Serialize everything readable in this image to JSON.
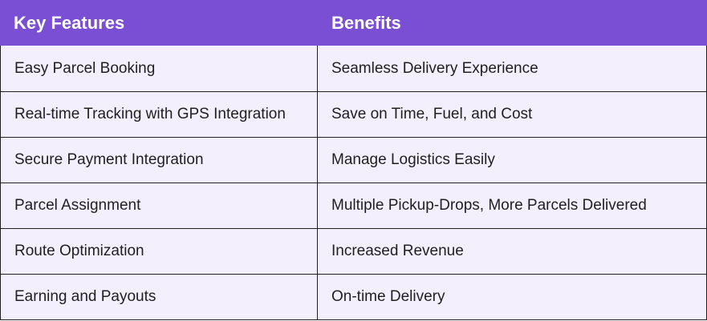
{
  "table": {
    "headers": [
      "Key Features",
      "Benefits"
    ],
    "rows": [
      [
        "Easy Parcel Booking",
        "Seamless Delivery Experience"
      ],
      [
        "Real-time Tracking with GPS Integration",
        "Save on Time, Fuel, and Cost"
      ],
      [
        "Secure Payment Integration",
        "Manage Logistics Easily"
      ],
      [
        "Parcel Assignment",
        "Multiple Pickup-Drops, More Parcels Delivered"
      ],
      [
        "Route Optimization",
        "Increased Revenue"
      ],
      [
        "Earning and Payouts",
        "On-time Delivery"
      ]
    ]
  },
  "colors": {
    "header_bg": "#7b4fd3",
    "header_text": "#ffffff",
    "row_bg": "#f4effd",
    "border": "#1f1f1f",
    "body_text": "#1f1f1f"
  }
}
